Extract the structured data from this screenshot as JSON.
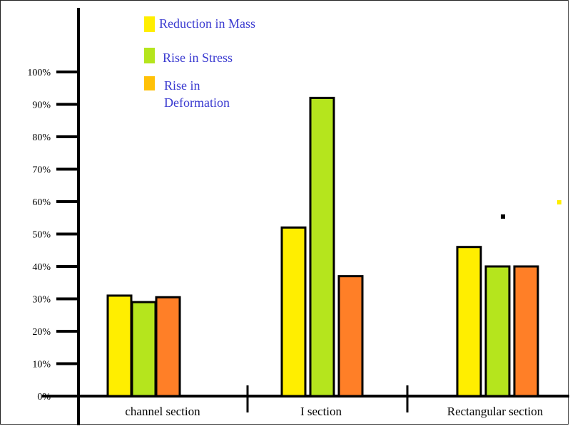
{
  "chart_data": {
    "type": "bar",
    "title": "",
    "xlabel": "",
    "ylabel": "",
    "categories": [
      "channel section",
      "I section",
      "Rectangular section"
    ],
    "series": [
      {
        "name": "Reduction in Mass",
        "color": "#ffee00",
        "values": [
          31,
          52,
          46
        ]
      },
      {
        "name": "Rise in Stress",
        "color": "#b5e51d",
        "values": [
          29,
          92,
          40
        ]
      },
      {
        "name": "Rise in Deformation",
        "color": "#ff7f27",
        "values": [
          30.5,
          37,
          40
        ]
      }
    ],
    "y_ticks": [
      {
        "label": "0%",
        "value": 0
      },
      {
        "label": "10%",
        "value": 10
      },
      {
        "label": "20%",
        "value": 20
      },
      {
        "label": "30%",
        "value": 30
      },
      {
        "label": "40%",
        "value": 40
      },
      {
        "label": "50%",
        "value": 50
      },
      {
        "label": "60%",
        "value": 60
      },
      {
        "label": "70%",
        "value": 70
      },
      {
        "label": "80%",
        "value": 80
      },
      {
        "label": "90%",
        "value": 90
      },
      {
        "label": "100%",
        "value": 100
      }
    ],
    "ylim": [
      0,
      100
    ],
    "grid": false,
    "legend_position": "top-left",
    "legend_swatch_colors": [
      "#ffee00",
      "#b5e51d",
      "#ffc107"
    ],
    "legend_text_color": "#3a3ad0"
  }
}
